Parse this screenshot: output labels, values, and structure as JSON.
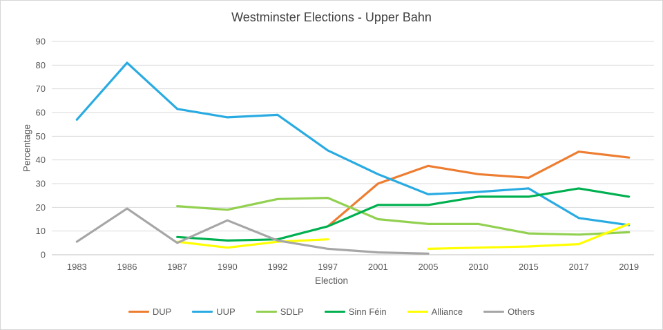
{
  "chart_data": {
    "type": "line",
    "title": "Westminster Elections - Upper Bahn",
    "xlabel": "Election",
    "ylabel": "Percentage",
    "categories": [
      "1983",
      "1986",
      "1987",
      "1990",
      "1992",
      "1997",
      "2001",
      "2005",
      "2010",
      "2015",
      "2017",
      "2019"
    ],
    "ylim": [
      0,
      90
    ],
    "ytick_step": 10,
    "grid": true,
    "legend_position": "bottom",
    "colors": {
      "gridline": "#D9D9D9",
      "axis_line": "#BFBFBF",
      "tick_text": "#595959",
      "title_text": "#404040"
    },
    "series": [
      {
        "name": "DUP",
        "color": "#ED7D31",
        "values": [
          null,
          null,
          null,
          null,
          null,
          12,
          30,
          37.5,
          34,
          32.5,
          43.5,
          41
        ]
      },
      {
        "name": "UUP",
        "color": "#29ABE2",
        "values": [
          57,
          81,
          61.5,
          58,
          59,
          44,
          34,
          25.5,
          26.5,
          28,
          15.5,
          12.5
        ]
      },
      {
        "name": "SDLP",
        "color": "#92D050",
        "values": [
          null,
          null,
          20.5,
          19,
          23.5,
          24,
          15,
          13,
          13,
          9,
          8.5,
          9.5
        ]
      },
      {
        "name": "Sinn Féin",
        "color": "#00B050",
        "values": [
          null,
          null,
          7.5,
          6,
          6.5,
          12,
          21,
          21,
          24.5,
          24.5,
          28,
          24.5
        ]
      },
      {
        "name": "Alliance",
        "color": "#FFFF00",
        "values": [
          null,
          null,
          5.5,
          3,
          5.5,
          6.5,
          null,
          2.5,
          3,
          3.5,
          4.5,
          13
        ]
      },
      {
        "name": "Others",
        "color": "#A6A6A6",
        "values": [
          5.5,
          19.5,
          5,
          14.5,
          6,
          2.5,
          1,
          0.5,
          null,
          null,
          null,
          null
        ]
      }
    ]
  }
}
